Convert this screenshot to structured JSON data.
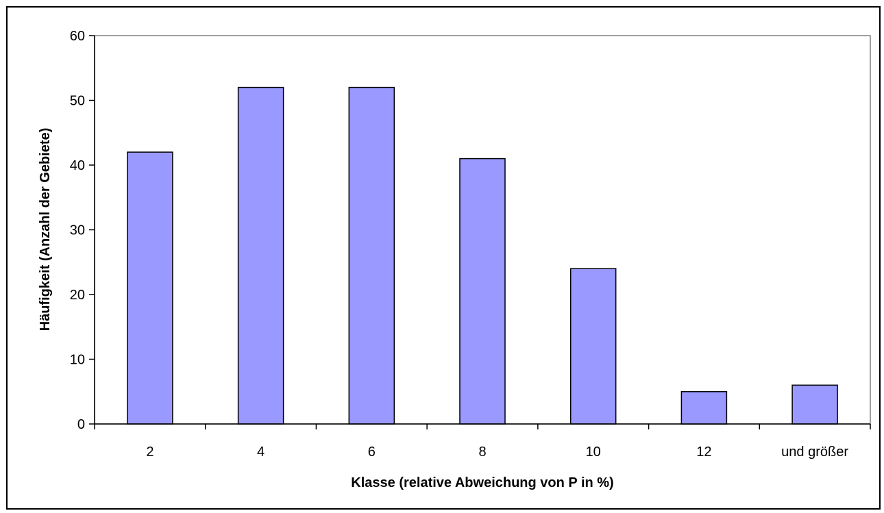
{
  "chart_data": {
    "type": "bar",
    "title": "",
    "xlabel": "Klasse (relative Abweichung von P in %)",
    "ylabel": "Häufigkeit (Anzahl der Gebiete)",
    "categories": [
      "2",
      "4",
      "6",
      "8",
      "10",
      "12",
      "und größer"
    ],
    "values": [
      42,
      52,
      52,
      41,
      24,
      5,
      6
    ],
    "ylim": [
      0,
      60
    ],
    "yticks": [
      0,
      10,
      20,
      30,
      40,
      50,
      60
    ],
    "grid": false,
    "legend": "none",
    "bar_color": "#9999ff",
    "bar_outline_color": "#000000",
    "plot_frame_color": "#808080"
  }
}
